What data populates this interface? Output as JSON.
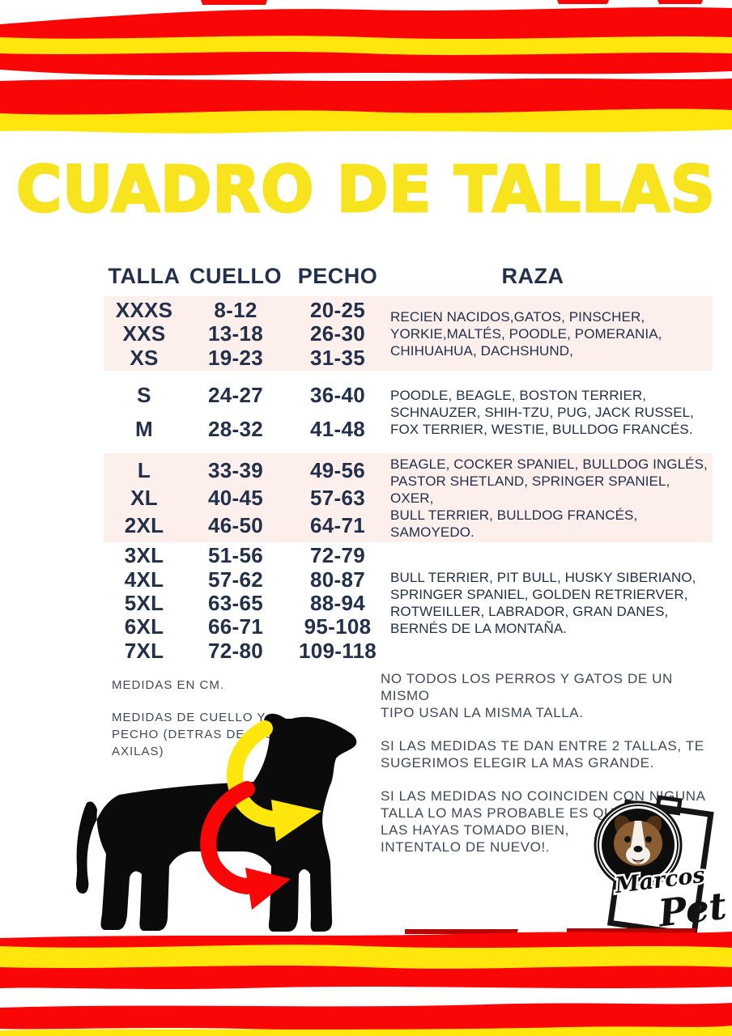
{
  "title": "CUADRO DE TALLAS",
  "table": {
    "headers": {
      "talla": "TALLA",
      "cuello": "CUELLO",
      "pecho": "PECHO",
      "raza": "RAZA"
    },
    "groups": [
      {
        "highlight": true,
        "rows": [
          {
            "talla": "XXXS",
            "cuello": "8-12",
            "pecho": "20-25"
          },
          {
            "talla": "XXS",
            "cuello": "13-18",
            "pecho": "26-30"
          },
          {
            "talla": "XS",
            "cuello": "19-23",
            "pecho": "31-35"
          }
        ],
        "raza": "RECIEN NACIDOS,GATOS, PINSCHER,\nYORKIE,MALTÉS, POODLE, POMERANIA,\nCHIHUAHUA, DACHSHUND,"
      },
      {
        "highlight": false,
        "rows": [
          {
            "talla": "S",
            "cuello": "24-27",
            "pecho": "36-40"
          },
          {
            "talla": "M",
            "cuello": "28-32",
            "pecho": "41-48"
          }
        ],
        "raza": "POODLE, BEAGLE, BOSTON TERRIER,\nSCHNAUZER, SHIH-TZU, PUG, JACK RUSSEL,\nFOX TERRIER, WESTIE, BULLDOG FRANCÉS."
      },
      {
        "highlight": true,
        "rows": [
          {
            "talla": "L",
            "cuello": "33-39",
            "pecho": "49-56"
          },
          {
            "talla": "XL",
            "cuello": "40-45",
            "pecho": "57-63"
          },
          {
            "talla": "2XL",
            "cuello": "46-50",
            "pecho": "64-71"
          }
        ],
        "raza": "BEAGLE, COCKER SPANIEL, BULLDOG INGLÉS,\nPASTOR SHETLAND, SPRINGER SPANIEL, OXER,\nBULL TERRIER, BULLDOG FRANCÉS, SAMOYEDO."
      },
      {
        "highlight": false,
        "rows": [
          {
            "talla": "3XL",
            "cuello": "51-56",
            "pecho": "72-79"
          },
          {
            "talla": "4XL",
            "cuello": "57-62",
            "pecho": "80-87"
          },
          {
            "talla": "5XL",
            "cuello": "63-65",
            "pecho": "88-94"
          },
          {
            "talla": "6XL",
            "cuello": "66-71",
            "pecho": "95-108"
          },
          {
            "talla": "7XL",
            "cuello": "72-80",
            "pecho": "109-118"
          }
        ],
        "raza": "BULL TERRIER, PIT BULL, HUSKY SIBERIANO,\nSPRINGER SPANIEL, GOLDEN RETRIERVER,\nROTWEILLER, LABRADOR, GRAN DANES,\nBERNÉS DE LA MONTAÑA."
      }
    ]
  },
  "notes_left": {
    "units": "MEDIDAS EN CM.",
    "how": "MEDIDAS DE CUELLO Y\nPECHO (DETRAS DE LAS\nAXILAS)"
  },
  "notes_right": [
    "NO TODOS LOS PERROS Y GATOS DE UN MISMO\nTIPO USAN LA MISMA TALLA.",
    "SI LAS MEDIDAS TE DAN ENTRE 2 TALLAS, TE\nSUGERIMOS ELEGIR LA MAS GRANDE.",
    "SI LAS MEDIDAS NO COINCIDEN CON NIGUNA\nTALLA LO MAS PROBABLE ES QUE NO\nLAS HAYAS TOMADO BIEN,\nINTENTALO DE NUEVO!."
  ],
  "logo": {
    "line1": "Marcos",
    "line2": "Pet"
  },
  "colors": {
    "red": "#F90606",
    "yellow": "#FFE60D",
    "title_yellow": "#F8E41E",
    "navy": "#23304B",
    "pink": "#FCEFEC",
    "note_text": "#3E4A5C"
  }
}
